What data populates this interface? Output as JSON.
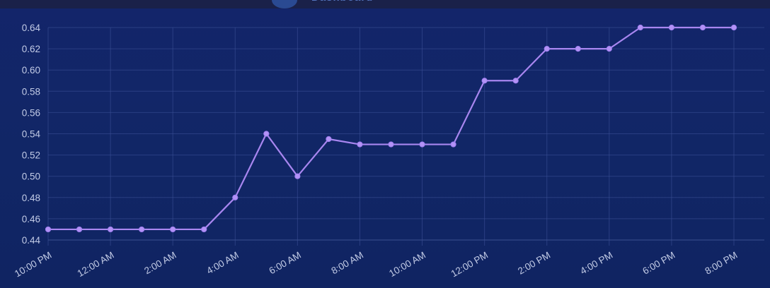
{
  "header": {
    "title": "Dashboard"
  },
  "colors": {
    "background": "#12266a",
    "series": "#a886f0",
    "grid": "#3a4f95",
    "tick_text": "#c2cbe6"
  },
  "chart_data": {
    "type": "line",
    "title": "",
    "xlabel": "",
    "ylabel": "",
    "ylim": [
      0.44,
      0.64
    ],
    "yticks": [
      "0.44",
      "0.46",
      "0.48",
      "0.50",
      "0.52",
      "0.54",
      "0.56",
      "0.58",
      "0.60",
      "0.62",
      "0.64"
    ],
    "xtick_labels": [
      "10:00 PM",
      "12:00 AM",
      "2:00 AM",
      "4:00 AM",
      "6:00 AM",
      "8:00 AM",
      "10:00 AM",
      "12:00 PM",
      "2:00 PM",
      "4:00 PM",
      "6:00 PM",
      "8:00 PM"
    ],
    "x": [
      "10:00 PM",
      "11:00 PM",
      "12:00 AM",
      "1:00 AM",
      "2:00 AM",
      "3:00 AM",
      "4:00 AM",
      "5:00 AM",
      "6:00 AM",
      "7:00 AM",
      "8:00 AM",
      "9:00 AM",
      "10:00 AM",
      "11:00 AM",
      "12:00 PM",
      "1:00 PM",
      "2:00 PM",
      "3:00 PM",
      "4:00 PM",
      "5:00 PM",
      "6:00 PM",
      "7:00 PM",
      "8:00 PM"
    ],
    "series": [
      {
        "values": [
          0.45,
          0.45,
          0.45,
          0.45,
          0.45,
          0.45,
          0.48,
          0.54,
          0.5,
          0.535,
          0.53,
          0.53,
          0.53,
          0.53,
          0.59,
          0.59,
          0.62,
          0.62,
          0.62,
          0.64,
          0.64,
          0.64,
          0.64
        ]
      }
    ],
    "grid": true,
    "legend": "none"
  }
}
